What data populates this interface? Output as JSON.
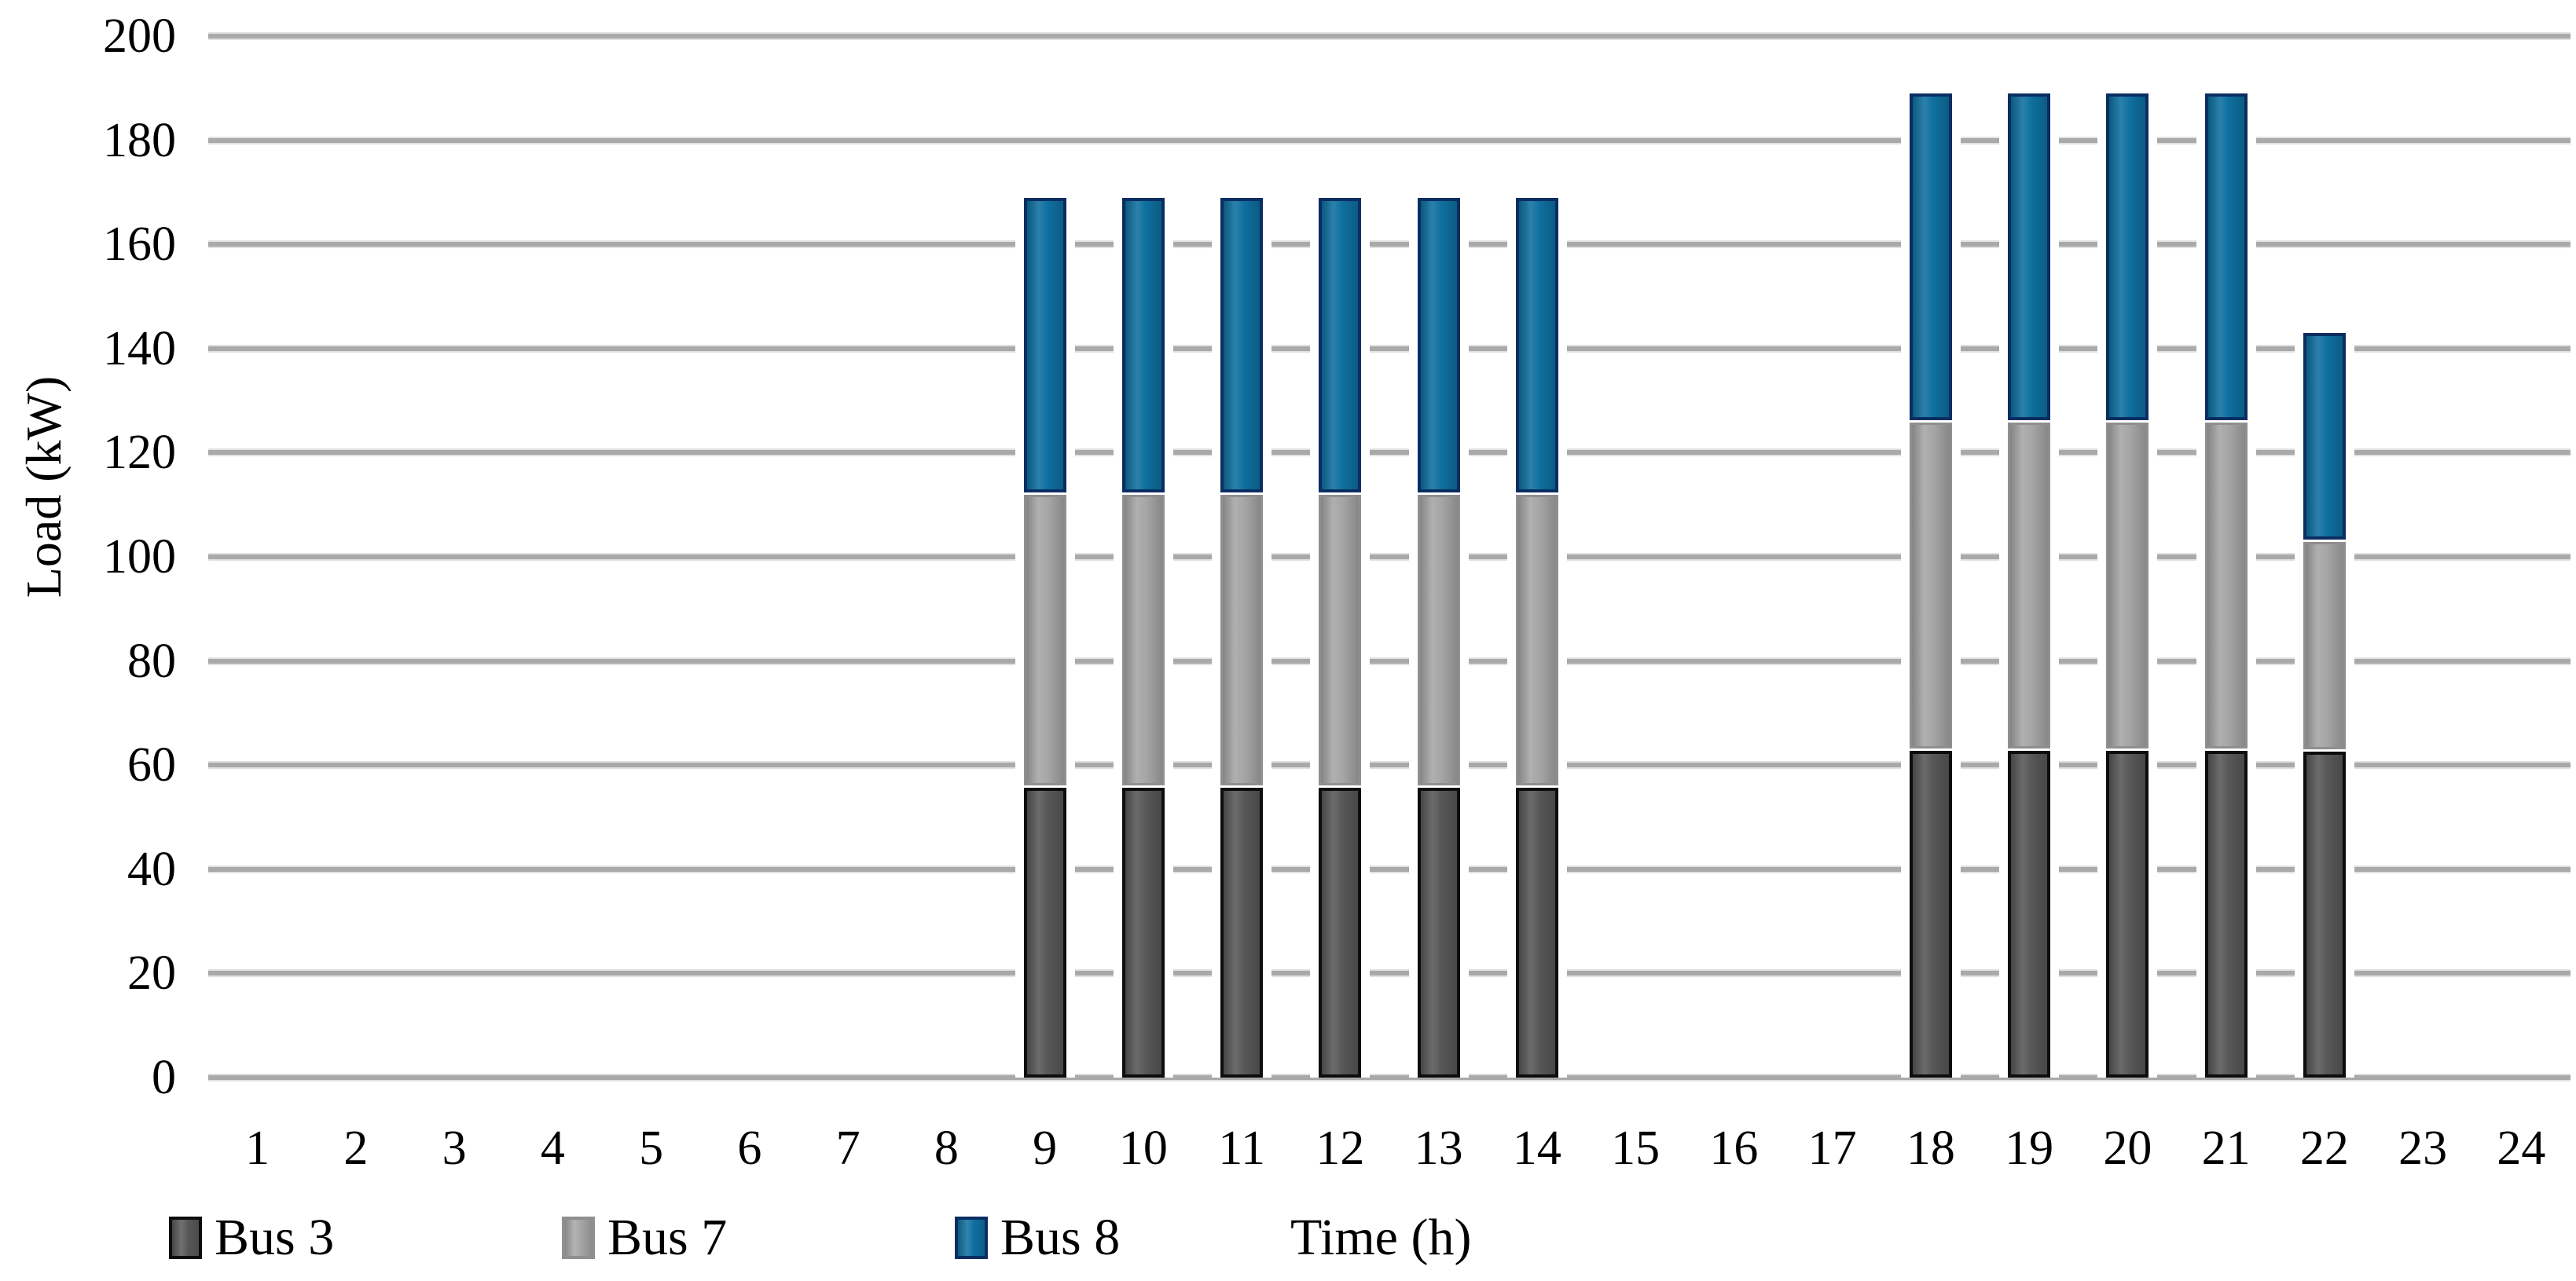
{
  "chart_data": {
    "type": "bar",
    "stacked": true,
    "title": "",
    "xlabel": "Time (h)",
    "ylabel": "Load (kW)",
    "ylim": [
      0,
      200
    ],
    "y_ticks": [
      0,
      20,
      40,
      60,
      80,
      100,
      120,
      140,
      160,
      180,
      200
    ],
    "grid": true,
    "gridline_color": "#a9a9a9",
    "legend_position": "bottom-left",
    "categories": [
      1,
      2,
      3,
      4,
      5,
      6,
      7,
      8,
      9,
      10,
      11,
      12,
      13,
      14,
      15,
      16,
      17,
      18,
      19,
      20,
      21,
      22,
      23,
      24
    ],
    "series": [
      {
        "name": "Bus 3",
        "color": "#575757",
        "border_color": "#0d0d0d",
        "values": [
          0,
          0,
          0,
          0,
          0,
          0,
          0,
          0,
          56,
          56,
          56,
          56,
          56,
          56,
          0,
          0,
          0,
          63,
          63,
          63,
          63,
          63,
          0,
          0
        ]
      },
      {
        "name": "Bus 7",
        "color": "#a5a5a5",
        "border_color": "#8f8f8f",
        "values": [
          0,
          0,
          0,
          0,
          0,
          0,
          0,
          0,
          56,
          56,
          56,
          56,
          56,
          56,
          0,
          0,
          0,
          63,
          63,
          63,
          63,
          40,
          0,
          0
        ]
      },
      {
        "name": "Bus 8",
        "color": "#0e6f9f",
        "border_color": "#0a2d62",
        "values": [
          0,
          0,
          0,
          0,
          0,
          0,
          0,
          0,
          57,
          57,
          57,
          57,
          57,
          57,
          0,
          0,
          0,
          63,
          63,
          63,
          63,
          40,
          0,
          0
        ]
      }
    ]
  },
  "axes": {
    "x_title": "Time (h)",
    "y_title": "Load (kW)"
  }
}
